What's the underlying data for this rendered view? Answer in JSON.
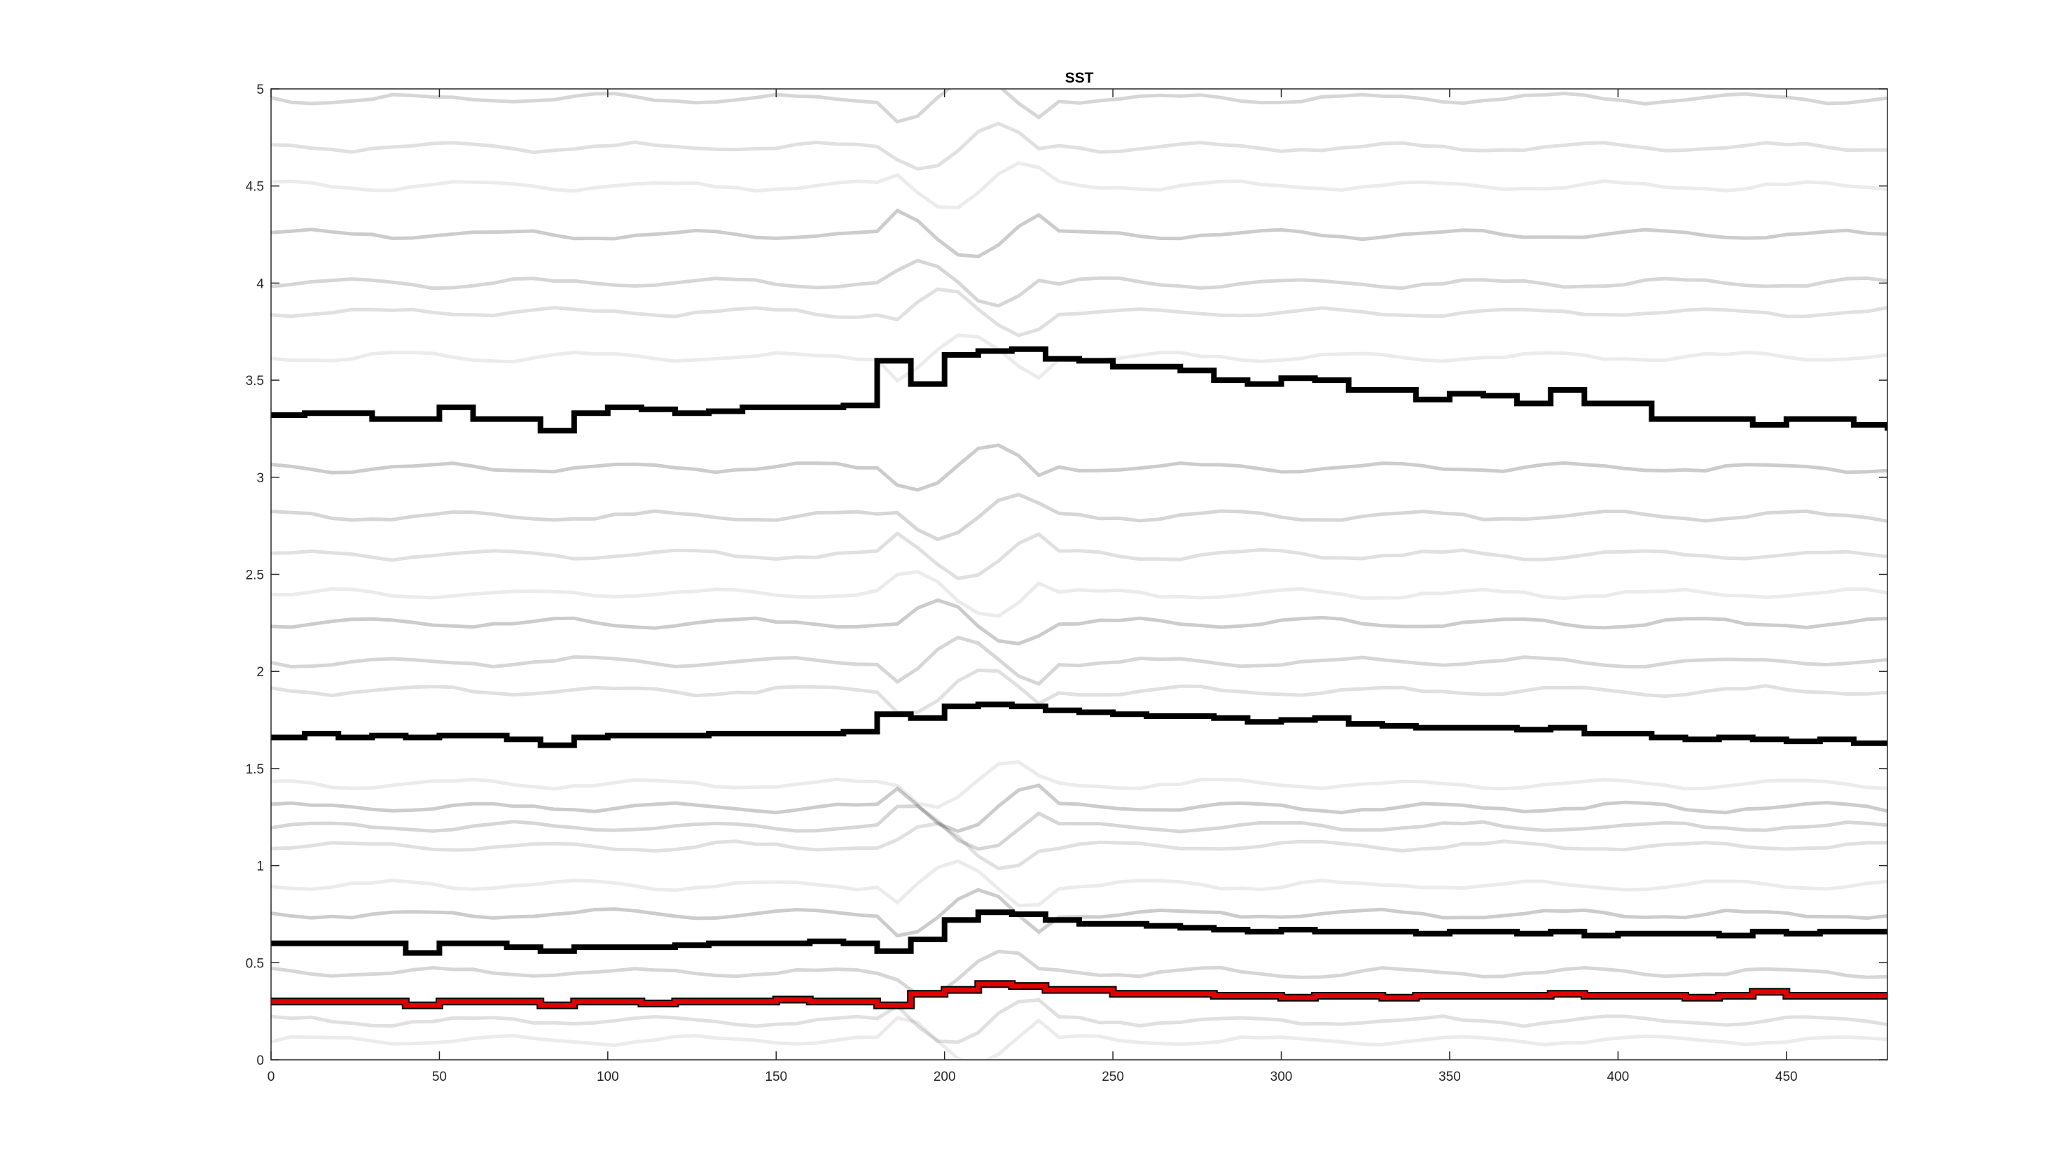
{
  "chart_data": {
    "type": "heatmap",
    "title": "SST",
    "xlabel": "",
    "ylabel": "",
    "xlim": [
      0,
      480
    ],
    "ylim": [
      0,
      5
    ],
    "x_ticks": [
      0,
      50,
      100,
      150,
      200,
      250,
      300,
      350,
      400,
      450
    ],
    "y_ticks": [
      0,
      0.5,
      1,
      1.5,
      2,
      2.5,
      3,
      3.5,
      4,
      4.5,
      5
    ],
    "x_tick_labels": [
      "0",
      "50",
      "100",
      "150",
      "200",
      "250",
      "300",
      "350",
      "400",
      "450"
    ],
    "y_tick_labels": [
      "0",
      "0.5",
      "1",
      "1.5",
      "2",
      "2.5",
      "3",
      "3.5",
      "4",
      "4.5",
      "5"
    ],
    "grid": false,
    "colormap": "gray-inverted",
    "background_color": "#ffffff",
    "ridge_color": "#000000",
    "highlight_color": "#e00000",
    "ridges": [
      {
        "x": [
          0,
          10,
          20,
          30,
          40,
          50,
          60,
          70,
          80,
          90,
          100,
          110,
          120,
          130,
          140,
          150,
          160,
          170,
          180,
          190,
          200,
          210,
          220,
          230,
          240,
          250,
          260,
          270,
          280,
          290,
          300,
          310,
          320,
          330,
          340,
          350,
          360,
          370,
          380,
          390,
          400,
          410,
          420,
          430,
          440,
          450,
          460,
          470,
          480
        ],
        "y": [
          3.32,
          3.33,
          3.33,
          3.3,
          3.3,
          3.36,
          3.3,
          3.3,
          3.24,
          3.33,
          3.36,
          3.35,
          3.33,
          3.34,
          3.36,
          3.36,
          3.36,
          3.37,
          3.6,
          3.48,
          3.63,
          3.65,
          3.66,
          3.61,
          3.6,
          3.57,
          3.57,
          3.55,
          3.5,
          3.48,
          3.51,
          3.5,
          3.45,
          3.45,
          3.4,
          3.43,
          3.42,
          3.38,
          3.45,
          3.38,
          3.38,
          3.3,
          3.3,
          3.3,
          3.27,
          3.3,
          3.3,
          3.27,
          3.24
        ]
      },
      {
        "x": [
          0,
          10,
          20,
          30,
          40,
          50,
          60,
          70,
          80,
          90,
          100,
          110,
          120,
          130,
          140,
          150,
          160,
          170,
          180,
          190,
          200,
          210,
          220,
          230,
          240,
          250,
          260,
          270,
          280,
          290,
          300,
          310,
          320,
          330,
          340,
          350,
          360,
          370,
          380,
          390,
          400,
          410,
          420,
          430,
          440,
          450,
          460,
          470,
          480
        ],
        "y": [
          1.66,
          1.68,
          1.66,
          1.67,
          1.66,
          1.67,
          1.67,
          1.65,
          1.62,
          1.66,
          1.67,
          1.67,
          1.67,
          1.68,
          1.68,
          1.68,
          1.68,
          1.69,
          1.78,
          1.76,
          1.82,
          1.83,
          1.82,
          1.8,
          1.79,
          1.78,
          1.77,
          1.77,
          1.76,
          1.74,
          1.75,
          1.76,
          1.73,
          1.72,
          1.71,
          1.71,
          1.71,
          1.7,
          1.71,
          1.68,
          1.68,
          1.66,
          1.65,
          1.66,
          1.65,
          1.64,
          1.65,
          1.63,
          1.62
        ]
      },
      {
        "x": [
          0,
          10,
          20,
          30,
          40,
          50,
          60,
          70,
          80,
          90,
          100,
          110,
          120,
          130,
          140,
          150,
          160,
          170,
          180,
          190,
          200,
          210,
          220,
          230,
          240,
          250,
          260,
          270,
          280,
          290,
          300,
          310,
          320,
          330,
          340,
          350,
          360,
          370,
          380,
          390,
          400,
          410,
          420,
          430,
          440,
          450,
          460,
          470,
          480
        ],
        "y": [
          0.6,
          0.6,
          0.6,
          0.6,
          0.55,
          0.6,
          0.6,
          0.58,
          0.56,
          0.58,
          0.58,
          0.58,
          0.59,
          0.6,
          0.6,
          0.6,
          0.61,
          0.6,
          0.56,
          0.62,
          0.72,
          0.76,
          0.75,
          0.72,
          0.7,
          0.7,
          0.69,
          0.68,
          0.67,
          0.66,
          0.67,
          0.66,
          0.66,
          0.66,
          0.65,
          0.66,
          0.66,
          0.65,
          0.66,
          0.64,
          0.65,
          0.65,
          0.65,
          0.64,
          0.66,
          0.65,
          0.66,
          0.66,
          0.66
        ]
      }
    ],
    "highlighted_ridge": {
      "x": [
        0,
        10,
        20,
        30,
        40,
        50,
        60,
        70,
        80,
        90,
        100,
        110,
        120,
        130,
        140,
        150,
        160,
        170,
        180,
        190,
        200,
        210,
        220,
        230,
        240,
        250,
        260,
        270,
        280,
        290,
        300,
        310,
        320,
        330,
        340,
        350,
        360,
        370,
        380,
        390,
        400,
        410,
        420,
        430,
        440,
        450,
        460,
        470,
        480
      ],
      "y": [
        0.3,
        0.3,
        0.3,
        0.3,
        0.28,
        0.3,
        0.3,
        0.3,
        0.28,
        0.3,
        0.3,
        0.29,
        0.3,
        0.3,
        0.3,
        0.31,
        0.3,
        0.3,
        0.28,
        0.34,
        0.36,
        0.39,
        0.38,
        0.36,
        0.36,
        0.34,
        0.34,
        0.34,
        0.33,
        0.33,
        0.32,
        0.33,
        0.33,
        0.32,
        0.33,
        0.33,
        0.33,
        0.33,
        0.34,
        0.33,
        0.33,
        0.33,
        0.32,
        0.33,
        0.35,
        0.33,
        0.33,
        0.33,
        0.33
      ]
    }
  }
}
